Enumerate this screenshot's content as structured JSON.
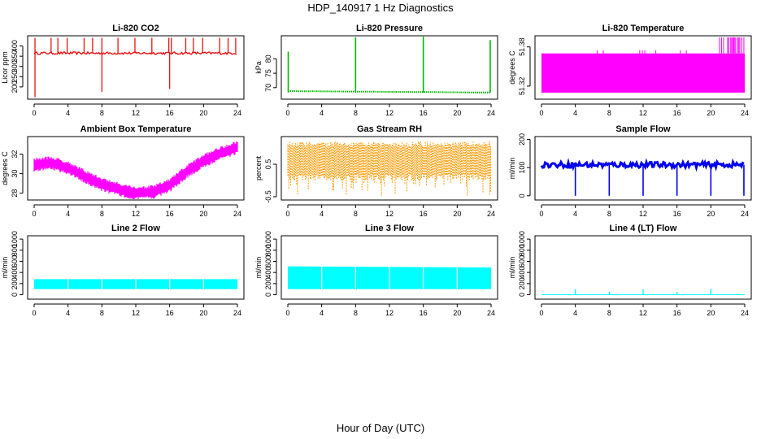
{
  "page": {
    "title": "HDP_140917  1 Hz Diagnostics",
    "x_axis_title": "Hour of Day (UTC)"
  },
  "chart_data": [
    {
      "id": "co2",
      "type": "line",
      "title": "Li-820 CO2",
      "ylabel": "Licor ppm",
      "color": "#ee1111",
      "xlim": [
        0,
        24
      ],
      "ylim": [
        140,
        450
      ],
      "xticks": [
        0,
        4,
        8,
        12,
        16,
        20,
        24
      ],
      "yticks": [
        200,
        250,
        300,
        350,
        400
      ],
      "baseline": 365,
      "noise": 6,
      "spikes_up": [
        0.1,
        2.0,
        2.8,
        3.9,
        5.9,
        6.9,
        8.0,
        9.9,
        11.9,
        13.9,
        15.9,
        16.2,
        17.9,
        18.8,
        19.9,
        21.9,
        22.9,
        23.8
      ],
      "spike_up_value": 440,
      "spikes_down": [
        [
          0.1,
          150
        ],
        [
          8.0,
          175
        ],
        [
          16.0,
          190
        ]
      ]
    },
    {
      "id": "pressure",
      "type": "line",
      "title": "Li-820 Pressure",
      "ylabel": "kPa",
      "color": "#00bb00",
      "xlim": [
        0,
        24
      ],
      "ylim": [
        66,
        88
      ],
      "xticks": [
        0,
        4,
        8,
        12,
        16,
        20,
        24
      ],
      "yticks": [
        70,
        75,
        80
      ],
      "baseline_start": 68.8,
      "baseline_end": 68.3,
      "spikes": [
        [
          0.05,
          82.5
        ],
        [
          8.0,
          87.5
        ],
        [
          16.0,
          88
        ],
        [
          23.9,
          86.5
        ]
      ]
    },
    {
      "id": "licor_temp",
      "type": "line",
      "title": "Li-820 Temperature",
      "ylabel": "degrees C",
      "color": "#ff00ff",
      "xlim": [
        0,
        24
      ],
      "ylim": [
        51.3,
        51.397
      ],
      "xticks": [
        0,
        4,
        8,
        12,
        16,
        20,
        24
      ],
      "yticks": [
        51.32,
        51.38
      ],
      "ytick_labels": [
        "51.32",
        "51.38"
      ],
      "band_low": 51.31,
      "band_high": 51.37,
      "upper_excursions_from_hour": 20.9
    },
    {
      "id": "box_temp",
      "type": "line",
      "title": "Ambient Box Temperature",
      "ylabel": "degrees C",
      "color": "#ff00ff",
      "xlim": [
        0,
        24
      ],
      "ylim": [
        27.3,
        33.8
      ],
      "xticks": [
        0,
        4,
        8,
        12,
        16,
        20,
        24
      ],
      "yticks": [
        28,
        30,
        32
      ],
      "x": [
        0,
        2,
        4,
        6,
        8,
        10,
        12,
        14,
        16,
        18,
        20,
        22,
        24
      ],
      "values": [
        30.9,
        31.1,
        30.6,
        29.7,
        28.9,
        28.4,
        28.0,
        28.1,
        28.8,
        30.2,
        31.3,
        32.1,
        32.7
      ],
      "band": 0.55
    },
    {
      "id": "rh",
      "type": "line",
      "title": "Gas Stream RH",
      "ylabel": "percent",
      "color": "#ff9900",
      "xlim": [
        0,
        24
      ],
      "ylim": [
        -0.6,
        1.35
      ],
      "xticks": [
        0,
        4,
        8,
        12,
        16,
        20,
        24
      ],
      "yticks": [
        -0.5,
        0.5
      ],
      "ytick_labels": [
        "-0.5",
        "0.5"
      ],
      "band_low": 0.0,
      "band_high": 1.2,
      "occasional_min": -0.5
    },
    {
      "id": "sample_flow",
      "type": "line",
      "title": "Sample Flow",
      "ylabel": "ml/min",
      "color": "#0000ee",
      "xlim": [
        0,
        24
      ],
      "ylim": [
        -15,
        210
      ],
      "xticks": [
        0,
        4,
        8,
        12,
        16,
        20,
        24
      ],
      "yticks": [
        0,
        100,
        200
      ],
      "baseline": 110,
      "noise": 10,
      "dips": [
        4.0,
        8.0,
        12.0,
        16.0,
        20.0,
        23.9
      ],
      "dip_value": 0
    },
    {
      "id": "line2_flow",
      "type": "line",
      "title": "Line 2 Flow",
      "ylabel": "ml/min",
      "color": "#00ffff",
      "xlim": [
        0,
        24
      ],
      "ylim": [
        -80,
        1060
      ],
      "xticks": [
        0,
        4,
        8,
        12,
        16,
        20,
        24
      ],
      "yticks": [
        0,
        200,
        400,
        600,
        800,
        1000
      ],
      "band_low": 100,
      "band_high": 280,
      "gaps": [
        4.0,
        8.0,
        12.0,
        16.0,
        20.0
      ]
    },
    {
      "id": "line3_flow",
      "type": "line",
      "title": "Line 3 Flow",
      "ylabel": "ml/min",
      "color": "#00ffff",
      "xlim": [
        0,
        24
      ],
      "ylim": [
        -80,
        1060
      ],
      "xticks": [
        0,
        4,
        8,
        12,
        16,
        20,
        24
      ],
      "yticks": [
        0,
        200,
        400,
        600,
        800,
        1000
      ],
      "band_low": 100,
      "band_high_start": 510,
      "band_high_end": 490,
      "gaps": [
        4.0,
        8.0,
        12.0,
        16.0,
        20.0
      ]
    },
    {
      "id": "line4_flow",
      "type": "line",
      "title": "Line 4 (LT) Flow",
      "ylabel": "ml/min",
      "color": "#00ffff",
      "xlim": [
        0,
        24
      ],
      "ylim": [
        -80,
        1060
      ],
      "xticks": [
        0,
        4,
        8,
        12,
        16,
        20,
        24
      ],
      "yticks": [
        0,
        200,
        400,
        600,
        800,
        1000
      ],
      "baseline": 0,
      "spikes": [
        [
          4.0,
          100
        ],
        [
          8.0,
          50
        ],
        [
          12.0,
          100
        ],
        [
          16.0,
          50
        ],
        [
          20.0,
          110
        ]
      ]
    }
  ]
}
